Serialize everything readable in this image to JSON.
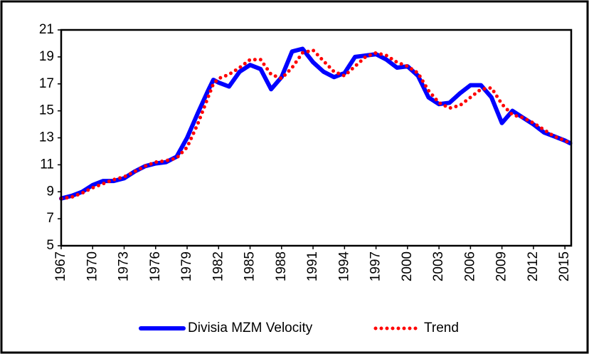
{
  "chart_data": {
    "type": "line",
    "x": [
      1967,
      1968,
      1969,
      1970,
      1971,
      1972,
      1973,
      1974,
      1975,
      1976,
      1977,
      1978,
      1979,
      1980,
      1981,
      1981.5,
      1982,
      1983,
      1984,
      1985,
      1986,
      1987,
      1988,
      1989,
      1990,
      1991,
      1992,
      1993,
      1994,
      1995,
      1996,
      1997,
      1998,
      1999,
      2000,
      2001,
      2002,
      2003,
      2004,
      2005,
      2006,
      2007,
      2008,
      2009,
      2010,
      2011,
      2012,
      2013,
      2014,
      2015,
      2015.5
    ],
    "series": [
      {
        "name": "Divisia MZM Velocity",
        "color": "#0000ff",
        "style": "solid",
        "values": [
          8.5,
          8.7,
          9.0,
          9.5,
          9.8,
          9.8,
          10.0,
          10.5,
          10.9,
          11.1,
          11.2,
          11.6,
          13.0,
          14.8,
          16.5,
          17.3,
          17.1,
          16.8,
          17.9,
          18.4,
          18.1,
          16.6,
          17.5,
          19.4,
          19.6,
          18.6,
          17.9,
          17.5,
          17.8,
          19.0,
          19.1,
          19.2,
          18.8,
          18.2,
          18.3,
          17.6,
          16.0,
          15.5,
          15.6,
          16.3,
          16.9,
          16.9,
          16.0,
          14.1,
          15.0,
          14.5,
          14.0,
          13.4,
          13.1,
          12.8,
          12.6
        ]
      },
      {
        "name": "Trend",
        "color": "#ff0000",
        "style": "dotted",
        "values": [
          8.5,
          8.6,
          8.9,
          9.3,
          9.6,
          9.9,
          10.1,
          10.5,
          10.9,
          11.2,
          11.3,
          11.5,
          12.3,
          14.0,
          16.0,
          17.0,
          17.4,
          17.7,
          18.2,
          18.8,
          18.8,
          17.7,
          17.4,
          18.2,
          19.3,
          19.5,
          18.7,
          17.9,
          17.6,
          18.3,
          19.0,
          19.3,
          19.1,
          18.6,
          18.3,
          17.8,
          16.5,
          15.6,
          15.2,
          15.4,
          16.0,
          16.6,
          16.7,
          15.5,
          14.7,
          14.5,
          14.1,
          13.6,
          13.1,
          12.8,
          12.6
        ]
      }
    ],
    "xlim": [
      1967,
      2015.6
    ],
    "xticks": [
      1967,
      1970,
      1973,
      1976,
      1979,
      1982,
      1985,
      1988,
      1991,
      1994,
      1997,
      2000,
      2003,
      2006,
      2009,
      2012,
      2015
    ],
    "ylim": [
      5,
      21
    ],
    "yticks": [
      5,
      7,
      9,
      11,
      13,
      15,
      17,
      19,
      21
    ],
    "legend": "bottom"
  }
}
